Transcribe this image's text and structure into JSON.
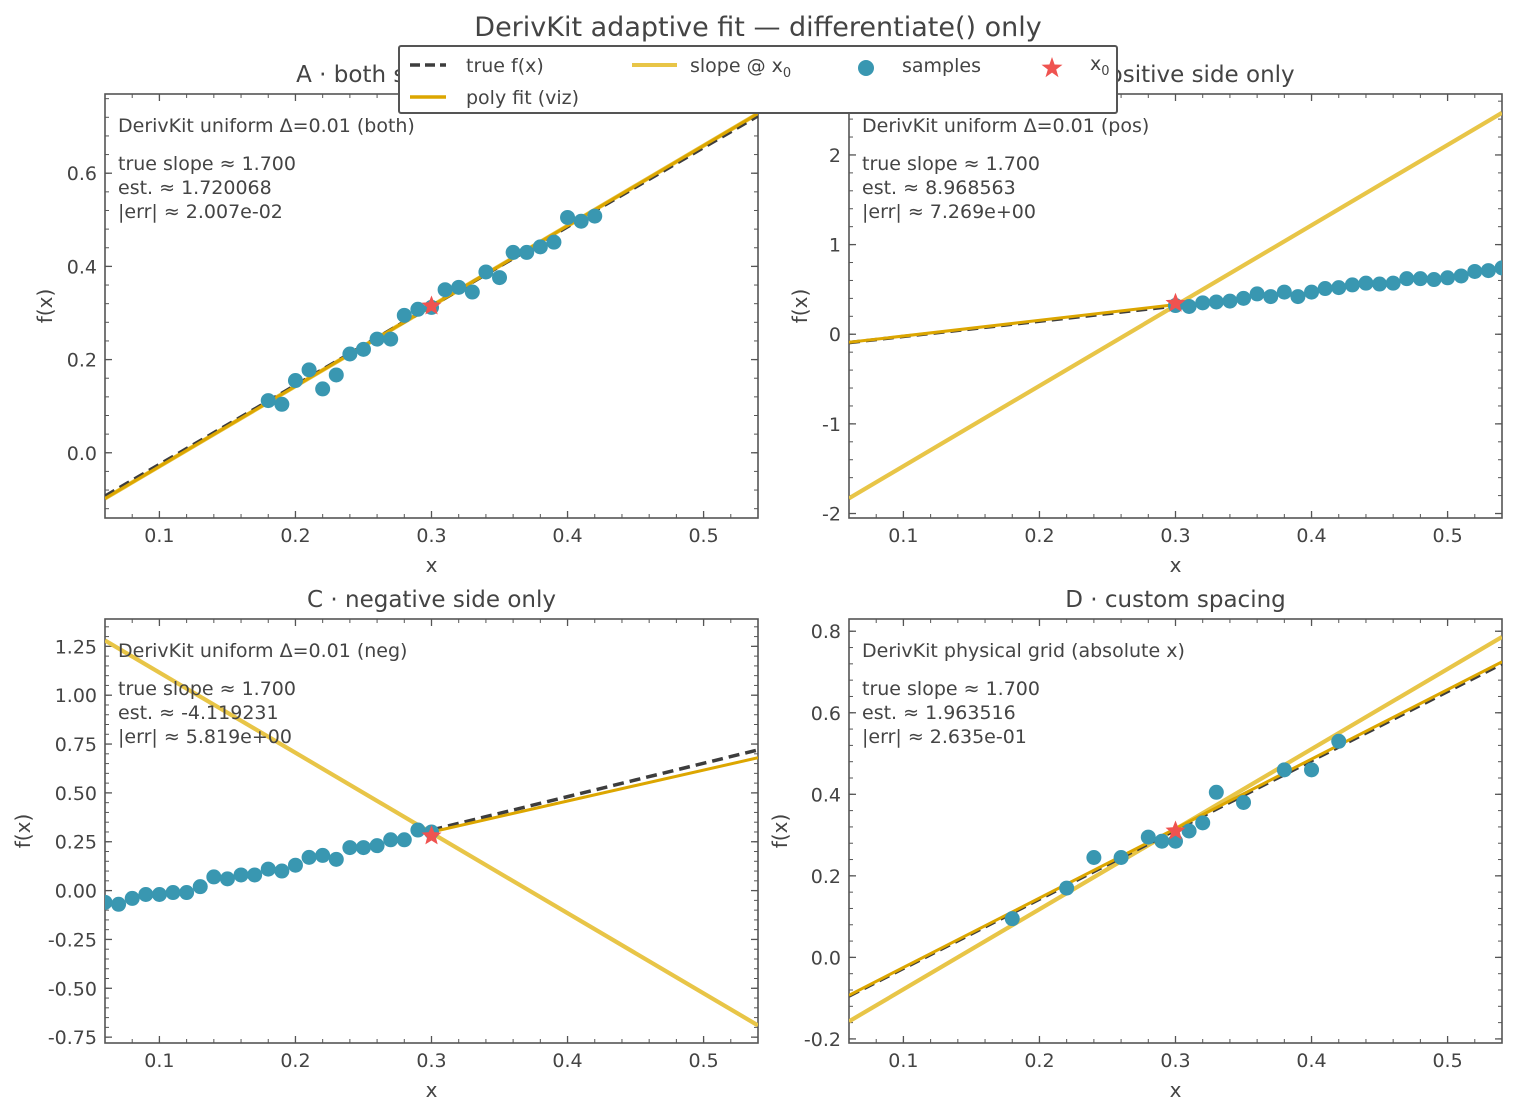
{
  "figure": {
    "title": "DerivKit adaptive fit — differentiate() only",
    "colors": {
      "true": "#3d3d3d",
      "poly": "#dca600",
      "slope": "#e8c547",
      "samples": "#3997b1",
      "x0": "#ef5350",
      "axis": "#555555",
      "text": "#444444"
    }
  },
  "legend": {
    "placement": "upper-center",
    "entries": [
      {
        "label": "true f(x)",
        "kind": "dash"
      },
      {
        "label": "poly fit (viz)",
        "kind": "line"
      },
      {
        "label": "slope @ x",
        "sub": "0",
        "kind": "slope"
      },
      {
        "label": "samples",
        "kind": "dot"
      },
      {
        "label": "x",
        "sub": "0",
        "kind": "star"
      }
    ]
  },
  "chart_data": [
    {
      "type": "line",
      "title": "A · both sides (uniform)",
      "xlabel": "x",
      "ylabel": "f(x)",
      "xlim": [
        0.06,
        0.54
      ],
      "ylim": [
        -0.14,
        0.77
      ],
      "xticks": [
        0.1,
        0.2,
        0.3,
        0.4,
        0.5
      ],
      "xticklabels": [
        "0.1",
        "0.2",
        "0.3",
        "0.4",
        "0.5"
      ],
      "yticks": [
        0.0,
        0.2,
        0.4,
        0.6
      ],
      "yticklabels": [
        "0.0",
        "0.2",
        "0.4",
        "0.6"
      ],
      "annotation_header": "DerivKit uniform Δ=0.01 (both)",
      "annotation_lines": [
        "true slope ≈ 1.700",
        "est. ≈ 1.720068",
        "|err| ≈ 2.007e-02"
      ],
      "x0": [
        0.3,
        0.315
      ],
      "true_line": [
        [
          0.06,
          -0.093
        ],
        [
          0.54,
          0.723
        ]
      ],
      "poly_line": [
        [
          0.06,
          -0.098
        ],
        [
          0.54,
          0.728
        ]
      ],
      "slope_line": [
        [
          0.06,
          -0.098
        ],
        [
          0.54,
          0.728
        ]
      ],
      "samples": {
        "x": [
          0.18,
          0.19,
          0.2,
          0.21,
          0.22,
          0.23,
          0.24,
          0.25,
          0.26,
          0.27,
          0.28,
          0.29,
          0.3,
          0.31,
          0.32,
          0.33,
          0.34,
          0.35,
          0.36,
          0.37,
          0.38,
          0.39,
          0.4,
          0.41,
          0.42
        ],
        "y": [
          0.112,
          0.104,
          0.155,
          0.178,
          0.137,
          0.167,
          0.212,
          0.222,
          0.244,
          0.244,
          0.295,
          0.308,
          0.312,
          0.35,
          0.355,
          0.345,
          0.388,
          0.376,
          0.43,
          0.43,
          0.442,
          0.452,
          0.505,
          0.497,
          0.508
        ]
      }
    },
    {
      "type": "line",
      "title": "B · positive side only",
      "xlabel": "x",
      "ylabel": "f(x)",
      "xlim": [
        0.06,
        0.54
      ],
      "ylim": [
        -2.05,
        2.68
      ],
      "xticks": [
        0.1,
        0.2,
        0.3,
        0.4,
        0.5
      ],
      "xticklabels": [
        "0.1",
        "0.2",
        "0.3",
        "0.4",
        "0.5"
      ],
      "yticks": [
        -2,
        -1,
        0,
        1,
        2
      ],
      "yticklabels": [
        "-2",
        "-1",
        "0",
        "1",
        "2"
      ],
      "annotation_header": "DerivKit uniform Δ=0.01 (pos)",
      "annotation_lines": [
        "true slope ≈ 1.700",
        "est. ≈ 8.968563",
        "|err| ≈ 7.269e+00"
      ],
      "x0": [
        0.3,
        0.345
      ],
      "true_line": [
        [
          0.06,
          -0.093
        ],
        [
          0.3,
          0.315
        ]
      ],
      "poly_line": [
        [
          0.06,
          -0.09
        ],
        [
          0.3,
          0.33
        ]
      ],
      "slope_line": [
        [
          0.06,
          -1.83
        ],
        [
          0.54,
          2.47
        ]
      ],
      "samples": {
        "x": [
          0.3,
          0.31,
          0.32,
          0.33,
          0.34,
          0.35,
          0.36,
          0.37,
          0.38,
          0.39,
          0.4,
          0.41,
          0.42,
          0.43,
          0.44,
          0.45,
          0.46,
          0.47,
          0.48,
          0.49,
          0.5,
          0.51,
          0.52,
          0.53,
          0.54
        ],
        "y": [
          0.32,
          0.31,
          0.35,
          0.36,
          0.37,
          0.4,
          0.45,
          0.42,
          0.47,
          0.42,
          0.47,
          0.51,
          0.52,
          0.55,
          0.57,
          0.56,
          0.57,
          0.62,
          0.62,
          0.61,
          0.63,
          0.65,
          0.7,
          0.71,
          0.74
        ]
      }
    },
    {
      "type": "line",
      "title": "C · negative side only",
      "xlabel": "x",
      "ylabel": "f(x)",
      "xlim": [
        0.06,
        0.54
      ],
      "ylim": [
        -0.78,
        1.39
      ],
      "xticks": [
        0.1,
        0.2,
        0.3,
        0.4,
        0.5
      ],
      "xticklabels": [
        "0.1",
        "0.2",
        "0.3",
        "0.4",
        "0.5"
      ],
      "yticks": [
        -0.75,
        -0.5,
        -0.25,
        0.0,
        0.25,
        0.5,
        0.75,
        1.0,
        1.25
      ],
      "yticklabels": [
        "-0.75",
        "-0.50",
        "-0.25",
        "0.00",
        "0.25",
        "0.50",
        "0.75",
        "1.00",
        "1.25"
      ],
      "annotation_header": "DerivKit uniform Δ=0.01 (neg)",
      "annotation_lines": [
        "true slope ≈ 1.700",
        "est. ≈ -4.119231",
        "|err| ≈ 5.819e+00"
      ],
      "x0": [
        0.3,
        0.28
      ],
      "true_line": [
        [
          0.3,
          0.31
        ],
        [
          0.54,
          0.72
        ]
      ],
      "poly_line": [
        [
          0.3,
          0.3
        ],
        [
          0.54,
          0.68
        ]
      ],
      "slope_line": [
        [
          0.06,
          1.28
        ],
        [
          0.54,
          -0.69
        ]
      ],
      "samples": {
        "x": [
          0.06,
          0.07,
          0.08,
          0.09,
          0.1,
          0.11,
          0.12,
          0.13,
          0.14,
          0.15,
          0.16,
          0.17,
          0.18,
          0.19,
          0.2,
          0.21,
          0.22,
          0.23,
          0.24,
          0.25,
          0.26,
          0.27,
          0.28,
          0.29,
          0.3
        ],
        "y": [
          -0.06,
          -0.07,
          -0.04,
          -0.02,
          -0.02,
          -0.01,
          -0.01,
          0.02,
          0.07,
          0.06,
          0.08,
          0.08,
          0.11,
          0.1,
          0.13,
          0.17,
          0.18,
          0.16,
          0.22,
          0.22,
          0.23,
          0.26,
          0.26,
          0.31,
          0.3
        ]
      }
    },
    {
      "type": "line",
      "title": "D · custom spacing",
      "xlabel": "x",
      "ylabel": "f(x)",
      "xlim": [
        0.06,
        0.54
      ],
      "ylim": [
        -0.21,
        0.83
      ],
      "xticks": [
        0.1,
        0.2,
        0.3,
        0.4,
        0.5
      ],
      "xticklabels": [
        "0.1",
        "0.2",
        "0.3",
        "0.4",
        "0.5"
      ],
      "yticks": [
        -0.2,
        0.0,
        0.2,
        0.4,
        0.6,
        0.8
      ],
      "yticklabels": [
        "-0.2",
        "0.0",
        "0.2",
        "0.4",
        "0.6",
        "0.8"
      ],
      "annotation_header": "DerivKit physical grid (absolute x)",
      "annotation_lines": [
        "true slope ≈ 1.700",
        "est. ≈ 1.963516",
        "|err| ≈ 2.635e-01"
      ],
      "x0": [
        0.3,
        0.31
      ],
      "true_line": [
        [
          0.06,
          -0.095
        ],
        [
          0.54,
          0.72
        ]
      ],
      "poly_line": [
        [
          0.06,
          -0.093
        ],
        [
          0.54,
          0.725
        ]
      ],
      "slope_line": [
        [
          0.06,
          -0.157
        ],
        [
          0.54,
          0.786
        ]
      ],
      "samples": {
        "x": [
          0.18,
          0.22,
          0.24,
          0.26,
          0.28,
          0.29,
          0.3,
          0.31,
          0.32,
          0.33,
          0.35,
          0.38,
          0.4,
          0.42
        ],
        "y": [
          0.095,
          0.17,
          0.245,
          0.245,
          0.295,
          0.285,
          0.285,
          0.31,
          0.33,
          0.405,
          0.38,
          0.46,
          0.46,
          0.53
        ]
      }
    }
  ]
}
